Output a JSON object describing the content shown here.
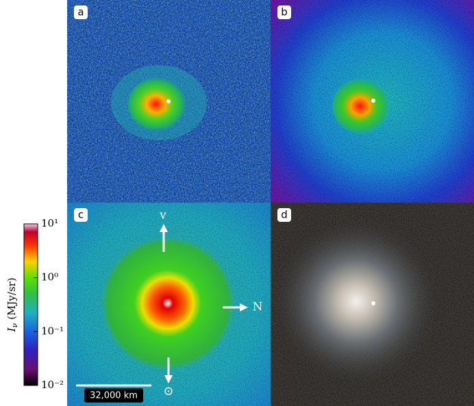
{
  "panels": [
    {
      "label": "a"
    },
    {
      "label": "b"
    },
    {
      "label": "c",
      "arrows": {
        "velocity": "v",
        "north": "N",
        "sun": "⊙"
      },
      "scale_bar": "32,000 km"
    },
    {
      "label": "d"
    }
  ],
  "colorbar": {
    "symbol": "I",
    "subscript": "ν",
    "unit": "(MJy/sr)",
    "scale": "log",
    "lim": [
      0.01,
      10
    ],
    "ticks": [
      {
        "value": 10,
        "label": "10¹"
      },
      {
        "value": 1,
        "label": "10⁰"
      },
      {
        "value": 0.1,
        "label": "10⁻¹"
      },
      {
        "value": 0.01,
        "label": "10⁻²"
      }
    ]
  }
}
